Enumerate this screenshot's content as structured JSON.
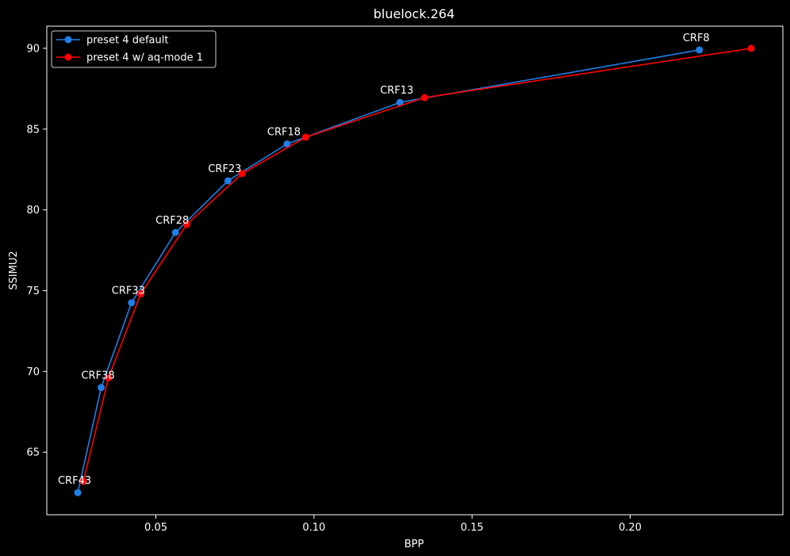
{
  "chart_data": {
    "type": "line",
    "title": "bluelock.264",
    "xlabel": "BPP",
    "ylabel": "SSIMU2",
    "xlim": [
      0.0155,
      0.2483
    ],
    "ylim": [
      61.13,
      91.37
    ],
    "xticks": [
      0.05,
      0.1,
      0.15,
      0.2
    ],
    "xtick_labels": [
      "0.05",
      "0.10",
      "0.15",
      "0.20"
    ],
    "yticks": [
      65,
      70,
      75,
      80,
      85,
      90
    ],
    "ytick_labels": [
      "65",
      "70",
      "75",
      "80",
      "85",
      "90"
    ],
    "grid": false,
    "legend_position": "top-left",
    "background": "#000000",
    "foreground": "#ffffff",
    "series": [
      {
        "name": "preset 4 default",
        "color": "#1f7fe8",
        "x": [
          0.0253,
          0.0327,
          0.0423,
          0.0562,
          0.0728,
          0.0915,
          0.1272,
          0.2219
        ],
        "y": [
          62.5,
          69.0,
          74.25,
          78.6,
          81.8,
          84.08,
          86.65,
          89.9
        ]
      },
      {
        "name": "preset 4 w/ aq-mode 1",
        "color": "#ff0000",
        "x": [
          0.0271,
          0.035,
          0.0452,
          0.0598,
          0.0773,
          0.0974,
          0.135,
          0.2383
        ],
        "y": [
          63.2,
          69.6,
          74.8,
          79.1,
          82.25,
          84.5,
          86.95,
          90.0
        ]
      }
    ],
    "annotations": [
      {
        "text": "CRF43",
        "x": 0.0253,
        "y": 62.5
      },
      {
        "text": "CRF38",
        "x": 0.0327,
        "y": 69.0
      },
      {
        "text": "CRF33",
        "x": 0.0423,
        "y": 74.25
      },
      {
        "text": "CRF28",
        "x": 0.0562,
        "y": 78.6
      },
      {
        "text": "CRF23",
        "x": 0.0728,
        "y": 81.8
      },
      {
        "text": "CRF18",
        "x": 0.0915,
        "y": 84.08
      },
      {
        "text": "CRF13",
        "x": 0.1272,
        "y": 86.65
      },
      {
        "text": "CRF8",
        "x": 0.2219,
        "y": 89.9
      }
    ]
  }
}
